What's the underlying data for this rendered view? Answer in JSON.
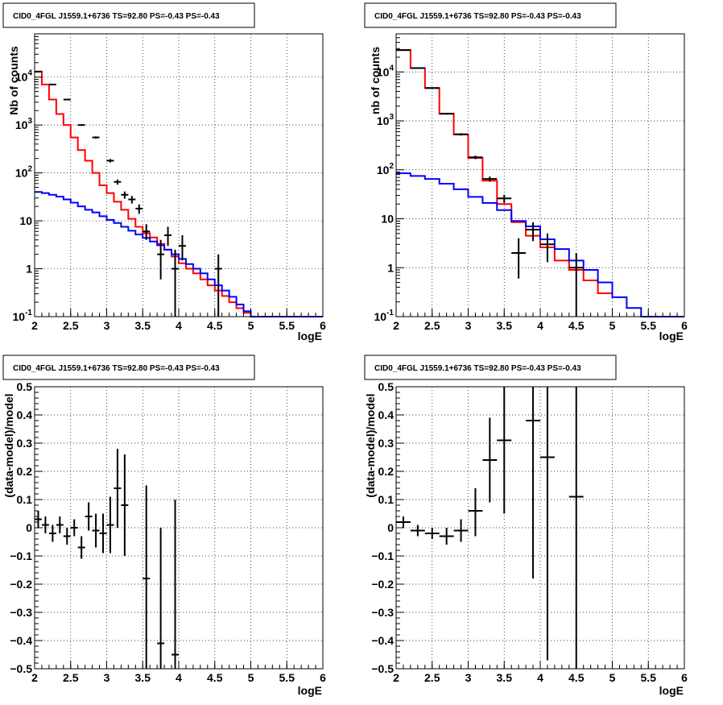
{
  "chart_data": [
    {
      "type": "line",
      "title": "CID0_4FGL J1559.1+6736 TS=92.80 PS=-0.43 PS=-0.43",
      "xlabel": "logE",
      "ylabel": "Nb of counts",
      "xlim": [
        2,
        6
      ],
      "ylim": [
        0.1,
        80000
      ],
      "yscale": "log",
      "x_ticks": [
        "2",
        "2.5",
        "3",
        "3.5",
        "4",
        "4.5",
        "5",
        "5.5",
        "6"
      ],
      "y_ticks": [
        "10^-1",
        "1",
        "10",
        "10^2",
        "10^3",
        "10^4"
      ],
      "grid": true,
      "series": [
        {
          "color": "#ff0000",
          "bins": [
            2.0,
            2.1,
            2.2,
            2.3,
            2.4,
            2.5,
            2.6,
            2.7,
            2.8,
            2.9,
            3.0,
            3.1,
            3.2,
            3.3,
            3.4,
            3.5,
            3.6,
            3.7,
            3.8,
            3.9,
            4.0,
            4.1,
            4.2,
            4.3,
            4.4,
            4.5,
            4.6,
            4.7,
            4.8,
            4.9,
            5.0
          ],
          "values": [
            13000,
            7000,
            3400,
            1700,
            1000,
            550,
            300,
            180,
            100,
            55,
            38,
            25,
            17,
            11,
            7.5,
            5.5,
            4.5,
            3.3,
            2.5,
            1.8,
            1.3,
            1.0,
            0.8,
            0.6,
            0.45,
            0.35,
            0.27,
            0.2,
            0.15,
            0.12
          ]
        },
        {
          "color": "#0000ff",
          "bins": [
            2.0,
            2.1,
            2.2,
            2.3,
            2.4,
            2.5,
            2.6,
            2.7,
            2.8,
            2.9,
            3.0,
            3.1,
            3.2,
            3.3,
            3.4,
            3.5,
            3.6,
            3.7,
            3.8,
            3.9,
            4.0,
            4.1,
            4.2,
            4.3,
            4.4,
            4.5,
            4.6,
            4.7,
            4.8,
            4.9,
            5.0,
            5.1,
            5.2,
            5.3,
            5.4,
            5.5,
            5.6,
            5.7,
            5.8,
            5.9,
            6.0
          ],
          "values": [
            40,
            38,
            35,
            32,
            28,
            24,
            20,
            17,
            15,
            12.5,
            10.5,
            9,
            7.5,
            6.2,
            5.2,
            4.4,
            3.7,
            3.1,
            2.5,
            2.0,
            1.6,
            1.25,
            1.0,
            0.8,
            0.6,
            0.45,
            0.35,
            0.26,
            0.18,
            0.13,
            0.1,
            0.1,
            0.1,
            0.1,
            0.1,
            0.1,
            0.1,
            0.1,
            0.1,
            0.1
          ]
        },
        {
          "color": "#000000",
          "points": [
            {
              "x": 2.05,
              "y": 13000,
              "xerr": 0.05,
              "ylo": 12800,
              "yhi": 13200
            },
            {
              "x": 2.25,
              "y": 7000,
              "xerr": 0.05,
              "ylo": 6850,
              "yhi": 7150
            },
            {
              "x": 2.45,
              "y": 3400,
              "xerr": 0.05,
              "ylo": 3300,
              "yhi": 3500
            },
            {
              "x": 2.65,
              "y": 1000,
              "xerr": 0.05,
              "ylo": 960,
              "yhi": 1040
            },
            {
              "x": 2.85,
              "y": 550,
              "xerr": 0.05,
              "ylo": 520,
              "yhi": 580
            },
            {
              "x": 3.05,
              "y": 180,
              "xerr": 0.05,
              "ylo": 165,
              "yhi": 195
            },
            {
              "x": 3.15,
              "y": 65,
              "xerr": 0.05,
              "ylo": 57,
              "yhi": 73
            },
            {
              "x": 3.25,
              "y": 35,
              "xerr": 0.05,
              "ylo": 29,
              "yhi": 41
            },
            {
              "x": 3.35,
              "y": 28,
              "xerr": 0.05,
              "ylo": 23,
              "yhi": 33
            },
            {
              "x": 3.45,
              "y": 18,
              "xerr": 0.05,
              "ylo": 14,
              "yhi": 22
            },
            {
              "x": 3.55,
              "y": 6,
              "xerr": 0.05,
              "ylo": 4,
              "yhi": 8.5
            },
            {
              "x": 3.75,
              "y": 2,
              "xerr": 0.05,
              "ylo": 0.6,
              "yhi": 4
            },
            {
              "x": 3.85,
              "y": 5,
              "xerr": 0.05,
              "ylo": 3,
              "yhi": 7.5
            },
            {
              "x": 3.95,
              "y": 1,
              "xerr": 0.05,
              "ylo": 0.1,
              "yhi": 2.5
            },
            {
              "x": 4.05,
              "y": 3,
              "xerr": 0.05,
              "ylo": 1.5,
              "yhi": 5
            },
            {
              "x": 4.55,
              "y": 1,
              "xerr": 0.05,
              "ylo": 0.1,
              "yhi": 2
            }
          ]
        }
      ]
    },
    {
      "type": "line",
      "title": "CID0_4FGL J1559.1+6736 TS=92.80 PS=-0.43 PS=-0.43",
      "xlabel": "logE",
      "ylabel": "nb of counts",
      "xlim": [
        2,
        6
      ],
      "ylim": [
        0.1,
        60000
      ],
      "yscale": "log",
      "x_ticks": [
        "2",
        "2.5",
        "3",
        "3.5",
        "4",
        "4.5",
        "5",
        "5.5",
        "6"
      ],
      "y_ticks": [
        "10^-1",
        "1",
        "10",
        "10^2",
        "10^3",
        "10^4"
      ],
      "grid": true,
      "series": [
        {
          "color": "#ff0000",
          "bins": [
            2.0,
            2.2,
            2.4,
            2.6,
            2.8,
            3.0,
            3.2,
            3.4,
            3.6,
            3.8,
            4.0,
            4.2,
            4.4,
            4.6,
            4.8,
            5.0
          ],
          "values": [
            28000,
            12000,
            4700,
            1400,
            530,
            175,
            60,
            20,
            8.5,
            4.5,
            2.6,
            1.4,
            0.9,
            0.55,
            0.3
          ]
        },
        {
          "color": "#0000ff",
          "bins": [
            2.0,
            2.2,
            2.4,
            2.6,
            2.8,
            3.0,
            3.2,
            3.4,
            3.6,
            3.8,
            4.0,
            4.2,
            4.4,
            4.6,
            4.8,
            5.0,
            5.2,
            5.4,
            5.6,
            5.8,
            6.0
          ],
          "values": [
            85,
            75,
            65,
            52,
            40,
            28,
            21,
            15,
            9,
            7,
            3.8,
            2.4,
            1.4,
            0.9,
            0.5,
            0.25,
            0.15,
            0.1,
            0.1,
            0.1
          ]
        },
        {
          "color": "#000000",
          "points": [
            {
              "x": 2.1,
              "y": 28000,
              "xerr": 0.1,
              "ylo": 27600,
              "yhi": 28400
            },
            {
              "x": 2.3,
              "y": 12000,
              "xerr": 0.1,
              "ylo": 11800,
              "yhi": 12200
            },
            {
              "x": 2.5,
              "y": 4700,
              "xerr": 0.1,
              "ylo": 4550,
              "yhi": 4850
            },
            {
              "x": 2.7,
              "y": 1400,
              "xerr": 0.1,
              "ylo": 1340,
              "yhi": 1460
            },
            {
              "x": 2.9,
              "y": 530,
              "xerr": 0.1,
              "ylo": 500,
              "yhi": 560
            },
            {
              "x": 3.1,
              "y": 180,
              "xerr": 0.1,
              "ylo": 165,
              "yhi": 195
            },
            {
              "x": 3.3,
              "y": 65,
              "xerr": 0.1,
              "ylo": 57,
              "yhi": 73
            },
            {
              "x": 3.5,
              "y": 26,
              "xerr": 0.1,
              "ylo": 21,
              "yhi": 31
            },
            {
              "x": 3.7,
              "y": 2,
              "xerr": 0.1,
              "ylo": 0.6,
              "yhi": 4
            },
            {
              "x": 3.9,
              "y": 6,
              "xerr": 0.1,
              "ylo": 3.5,
              "yhi": 8.5
            },
            {
              "x": 4.1,
              "y": 3,
              "xerr": 0.1,
              "ylo": 1.3,
              "yhi": 5
            },
            {
              "x": 4.5,
              "y": 1,
              "xerr": 0.1,
              "ylo": 0.1,
              "yhi": 2
            }
          ]
        }
      ]
    },
    {
      "type": "scatter",
      "title": "CID0_4FGL J1559.1+6736 TS=92.80 PS=-0.43 PS=-0.43",
      "xlabel": "logE",
      "ylabel": "(data-model)/model",
      "xlim": [
        2,
        6
      ],
      "ylim": [
        -0.5,
        0.5
      ],
      "x_ticks": [
        "2",
        "2.5",
        "3",
        "3.5",
        "4",
        "4.5",
        "5",
        "5.5",
        "6"
      ],
      "y_ticks": [
        "−0.5",
        "−0.4",
        "−0.3",
        "−0.2",
        "−0.1",
        "0",
        "0.1",
        "0.2",
        "0.3",
        "0.4",
        "0.5"
      ],
      "grid": true,
      "series": [
        {
          "color": "#000000",
          "points": [
            {
              "x": 2.05,
              "y": 0.03,
              "xerr": 0.05,
              "ylo": 0.0,
              "yhi": 0.06
            },
            {
              "x": 2.15,
              "y": 0.01,
              "xerr": 0.05,
              "ylo": -0.02,
              "yhi": 0.04
            },
            {
              "x": 2.25,
              "y": -0.02,
              "xerr": 0.05,
              "ylo": -0.05,
              "yhi": 0.01
            },
            {
              "x": 2.35,
              "y": 0.01,
              "xerr": 0.05,
              "ylo": -0.02,
              "yhi": 0.04
            },
            {
              "x": 2.45,
              "y": -0.03,
              "xerr": 0.05,
              "ylo": -0.06,
              "yhi": 0.0
            },
            {
              "x": 2.55,
              "y": 0.0,
              "xerr": 0.05,
              "ylo": -0.03,
              "yhi": 0.03
            },
            {
              "x": 2.65,
              "y": -0.07,
              "xerr": 0.05,
              "ylo": -0.11,
              "yhi": -0.03
            },
            {
              "x": 2.75,
              "y": 0.04,
              "xerr": 0.05,
              "ylo": -0.01,
              "yhi": 0.09
            },
            {
              "x": 2.85,
              "y": -0.01,
              "xerr": 0.05,
              "ylo": -0.07,
              "yhi": 0.05
            },
            {
              "x": 2.95,
              "y": -0.02,
              "xerr": 0.05,
              "ylo": -0.09,
              "yhi": 0.05
            },
            {
              "x": 3.05,
              "y": 0.01,
              "xerr": 0.05,
              "ylo": -0.09,
              "yhi": 0.11
            },
            {
              "x": 3.15,
              "y": 0.14,
              "xerr": 0.05,
              "ylo": 0.0,
              "yhi": 0.28
            },
            {
              "x": 3.25,
              "y": 0.08,
              "xerr": 0.05,
              "ylo": -0.1,
              "yhi": 0.26
            },
            {
              "x": 3.55,
              "y": -0.18,
              "xerr": 0.05,
              "ylo": -0.5,
              "yhi": 0.15
            },
            {
              "x": 3.75,
              "y": -0.41,
              "xerr": 0.05,
              "ylo": -0.5,
              "yhi": 0.0
            },
            {
              "x": 3.95,
              "y": -0.45,
              "xerr": 0.05,
              "ylo": -0.5,
              "yhi": 0.1
            }
          ]
        }
      ]
    },
    {
      "type": "scatter",
      "title": "CID0_4FGL J1559.1+6736 TS=92.80 PS=-0.43 PS=-0.43",
      "xlabel": "logE",
      "ylabel": "(data-model)/model",
      "xlim": [
        2,
        6
      ],
      "ylim": [
        -0.5,
        0.5
      ],
      "x_ticks": [
        "2",
        "2.5",
        "3",
        "3.5",
        "4",
        "4.5",
        "5",
        "5.5",
        "6"
      ],
      "y_ticks": [
        "−0.5",
        "−0.4",
        "−0.3",
        "−0.2",
        "−0.1",
        "0",
        "0.1",
        "0.2",
        "0.3",
        "0.4",
        "0.5"
      ],
      "grid": true,
      "series": [
        {
          "color": "#000000",
          "points": [
            {
              "x": 2.1,
              "y": 0.02,
              "xerr": 0.1,
              "ylo": 0.0,
              "yhi": 0.04
            },
            {
              "x": 2.3,
              "y": -0.01,
              "xerr": 0.1,
              "ylo": -0.03,
              "yhi": 0.01
            },
            {
              "x": 2.5,
              "y": -0.02,
              "xerr": 0.1,
              "ylo": -0.04,
              "yhi": 0.0
            },
            {
              "x": 2.7,
              "y": -0.03,
              "xerr": 0.1,
              "ylo": -0.06,
              "yhi": 0.0
            },
            {
              "x": 2.9,
              "y": -0.01,
              "xerr": 0.1,
              "ylo": -0.05,
              "yhi": 0.03
            },
            {
              "x": 3.1,
              "y": 0.06,
              "xerr": 0.1,
              "ylo": -0.03,
              "yhi": 0.14
            },
            {
              "x": 3.3,
              "y": 0.24,
              "xerr": 0.1,
              "ylo": 0.09,
              "yhi": 0.39
            },
            {
              "x": 3.5,
              "y": 0.31,
              "xerr": 0.1,
              "ylo": 0.05,
              "yhi": 0.5
            },
            {
              "x": 3.9,
              "y": 0.38,
              "xerr": 0.1,
              "ylo": -0.18,
              "yhi": 0.5
            },
            {
              "x": 4.1,
              "y": 0.25,
              "xerr": 0.1,
              "ylo": -0.47,
              "yhi": 0.5
            },
            {
              "x": 4.5,
              "y": 0.11,
              "xerr": 0.1,
              "ylo": -0.5,
              "yhi": 0.5
            }
          ]
        }
      ]
    }
  ]
}
